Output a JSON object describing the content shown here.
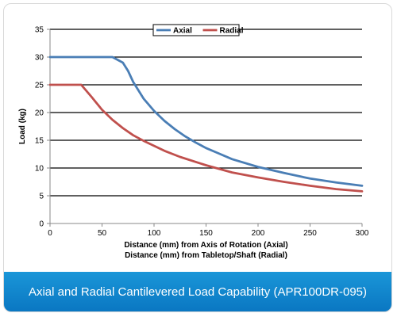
{
  "caption": "Axial and Radial Cantilevered Load Capability (APR100DR-095)",
  "chart_data": {
    "type": "line",
    "xlabel": "Distance (mm) from Axis of Rotation (Axial)",
    "xlabel2": "Distance (mm) from Tabletop/Shaft (Radial)",
    "ylabel": "Load (kg)",
    "xlim": [
      0,
      300
    ],
    "ylim": [
      0,
      35
    ],
    "xticks": [
      0,
      50,
      100,
      150,
      200,
      250,
      300
    ],
    "yticks": [
      0,
      5,
      10,
      15,
      20,
      25,
      30,
      35
    ],
    "grid": "horizontal",
    "legend_position": "top-center",
    "series": [
      {
        "name": "Axial",
        "color": "#4a7eb5",
        "x": [
          0,
          20,
          40,
          60,
          70,
          75,
          80,
          90,
          100,
          110,
          120,
          130,
          140,
          150,
          160,
          175,
          200,
          225,
          250,
          275,
          300
        ],
        "y": [
          30,
          30,
          30,
          30,
          29,
          27.5,
          25.5,
          22.5,
          20.3,
          18.5,
          17,
          15.7,
          14.6,
          13.6,
          12.8,
          11.6,
          10.2,
          9.1,
          8.1,
          7.4,
          6.8
        ]
      },
      {
        "name": "Radial",
        "color": "#c0504d",
        "x": [
          0,
          10,
          20,
          30,
          40,
          50,
          60,
          70,
          80,
          90,
          100,
          110,
          125,
          150,
          175,
          200,
          225,
          250,
          275,
          300
        ],
        "y": [
          25,
          25,
          25,
          25,
          22.8,
          20.5,
          18.7,
          17.2,
          15.9,
          14.9,
          14,
          13.1,
          12,
          10.5,
          9.2,
          8.3,
          7.5,
          6.8,
          6.2,
          5.8
        ]
      }
    ]
  }
}
